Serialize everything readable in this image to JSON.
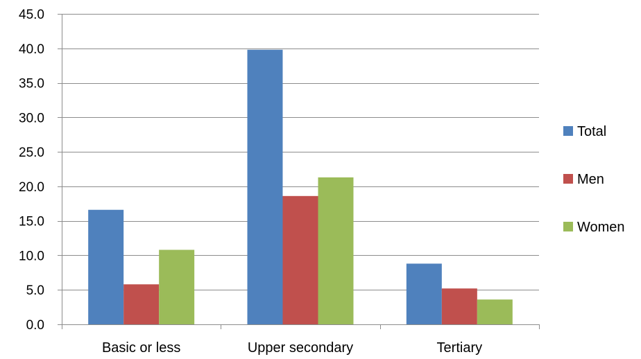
{
  "chart_data": {
    "type": "bar",
    "categories": [
      "Basic or less",
      "Upper secondary",
      "Tertiary"
    ],
    "series": [
      {
        "name": "Total",
        "values": [
          16.6,
          39.8,
          8.8
        ],
        "color": "#4F81BD"
      },
      {
        "name": "Men",
        "values": [
          5.8,
          18.6,
          5.2
        ],
        "color": "#C0504D"
      },
      {
        "name": "Women",
        "values": [
          10.8,
          21.3,
          3.6
        ],
        "color": "#9BBB59"
      }
    ],
    "ylim": [
      0,
      45
    ],
    "y_ticks": [
      "0.0",
      "5.0",
      "10.0",
      "15.0",
      "20.0",
      "25.0",
      "30.0",
      "35.0",
      "40.0",
      "45.0"
    ],
    "title": "",
    "xlabel": "",
    "ylabel": "",
    "grid": true,
    "legend_position": "right"
  }
}
